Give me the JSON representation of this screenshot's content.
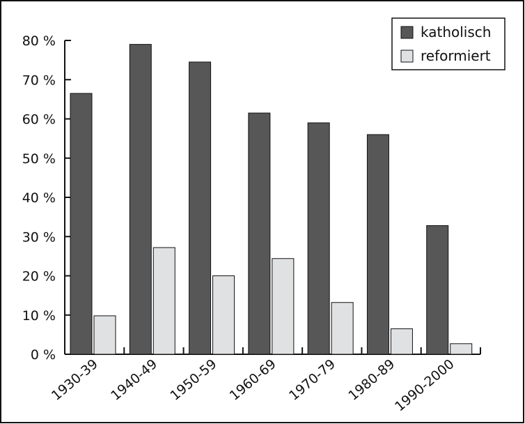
{
  "chart_data": {
    "type": "bar",
    "title": "",
    "xlabel": "",
    "ylabel": "",
    "ylim": [
      0,
      80
    ],
    "yticks": [
      0,
      10,
      20,
      30,
      40,
      50,
      60,
      70,
      80
    ],
    "ytick_labels": [
      "0 %",
      "10 %",
      "20 %",
      "30 %",
      "40 %",
      "50 %",
      "60 %",
      "70 %",
      "80 %"
    ],
    "categories": [
      "1930-39",
      "1940-49",
      "1950-59",
      "1960-69",
      "1970-79",
      "1980-89",
      "1990-2000"
    ],
    "series": [
      {
        "name": "katholisch",
        "color": "#575757",
        "values": [
          66.5,
          79,
          74.5,
          61.5,
          59,
          56,
          32.8
        ]
      },
      {
        "name": "reformiert",
        "color": "#e0e1e2",
        "values": [
          9.8,
          27.2,
          20,
          24.4,
          13.2,
          6.5,
          2.7
        ]
      }
    ],
    "grid": false,
    "legend_position": "top-right"
  }
}
